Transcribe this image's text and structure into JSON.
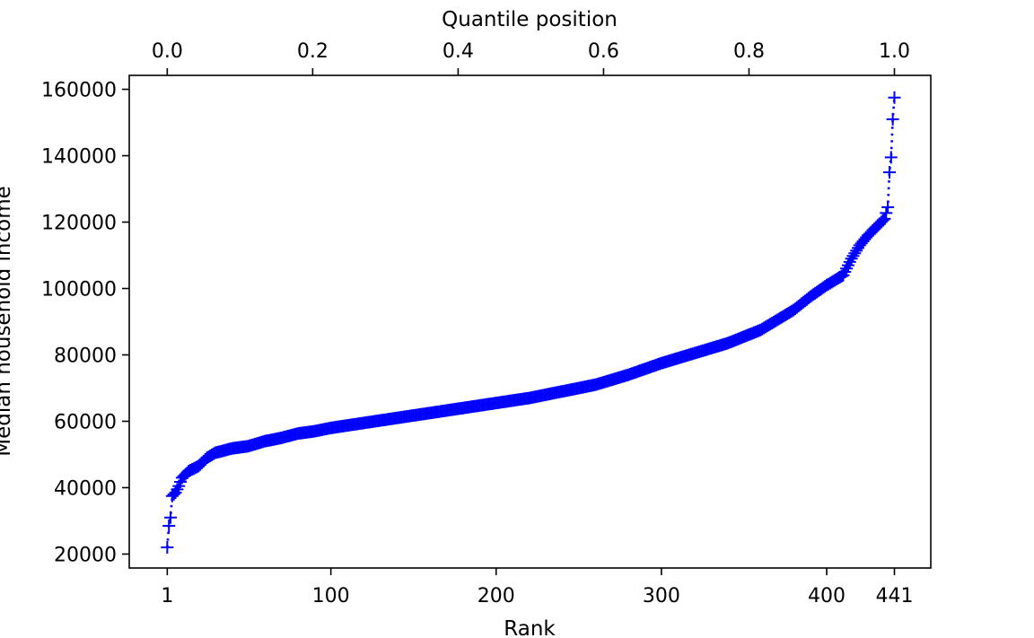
{
  "chart_data": {
    "type": "scatter",
    "xlabel": "Rank",
    "x2label": "Quantile position",
    "ylabel": "Median household income",
    "xlim": [
      -22,
      463
    ],
    "ylim": [
      15800,
      164200
    ],
    "x_ticks": [
      1,
      100,
      200,
      300,
      400,
      441
    ],
    "x2_ticks": [
      "0.0",
      "0.2",
      "0.4",
      "0.6",
      "0.8",
      "1.0"
    ],
    "y_ticks": [
      20000,
      40000,
      60000,
      80000,
      100000,
      120000,
      140000,
      160000
    ],
    "marker": "+",
    "line_style": "dotted",
    "grid": false,
    "color": "#0000ff",
    "n_points": 441,
    "anchors": [
      [
        1,
        22000
      ],
      [
        2,
        28500
      ],
      [
        3,
        31000
      ],
      [
        4,
        37500
      ],
      [
        6,
        38500
      ],
      [
        8,
        40500
      ],
      [
        10,
        43000
      ],
      [
        14,
        45000
      ],
      [
        20,
        46500
      ],
      [
        25,
        49000
      ],
      [
        30,
        50500
      ],
      [
        40,
        51800
      ],
      [
        50,
        52500
      ],
      [
        60,
        54000
      ],
      [
        70,
        55000
      ],
      [
        80,
        56300
      ],
      [
        90,
        57000
      ],
      [
        100,
        58000
      ],
      [
        120,
        59500
      ],
      [
        140,
        61000
      ],
      [
        160,
        62500
      ],
      [
        180,
        64000
      ],
      [
        200,
        65500
      ],
      [
        220,
        67000
      ],
      [
        240,
        69000
      ],
      [
        260,
        71000
      ],
      [
        280,
        74000
      ],
      [
        300,
        77500
      ],
      [
        320,
        80500
      ],
      [
        340,
        83500
      ],
      [
        360,
        87500
      ],
      [
        380,
        93500
      ],
      [
        390,
        97500
      ],
      [
        400,
        101000
      ],
      [
        410,
        104000
      ],
      [
        415,
        109000
      ],
      [
        420,
        113000
      ],
      [
        425,
        116000
      ],
      [
        430,
        118500
      ],
      [
        435,
        121000
      ],
      [
        437,
        124500
      ],
      [
        438,
        135000
      ],
      [
        439,
        139500
      ],
      [
        440,
        151000
      ],
      [
        441,
        157500
      ]
    ]
  }
}
